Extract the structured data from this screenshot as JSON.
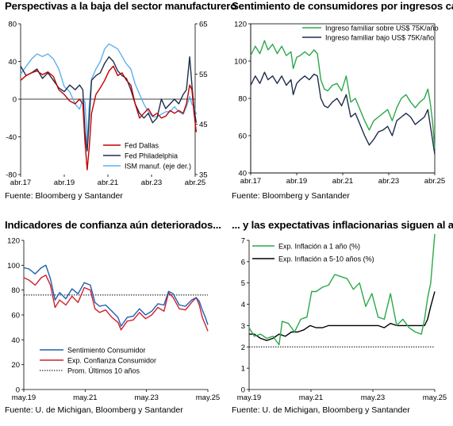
{
  "panels": {
    "p1": {
      "title": "Perspectivas a la baja del sector manufacturero",
      "source": "Fuente: Bloomberg y Santander"
    },
    "p2": {
      "title": "Sentimiento de consumidores por ingresos cae",
      "source": "Fuente: Bloomberg y Santander"
    },
    "p3": {
      "title": "Indicadores de confianza aún deteriorados...",
      "source": "Fuente: U. de Michigan, Bloomberg y Santander"
    },
    "p4": {
      "title": "... y las expectativas inflacionarias siguen al alza",
      "source": "Fuente: U. de Michigan, Bloomberg y Santander"
    }
  },
  "chart_data": [
    {
      "id": "p1",
      "type": "line",
      "title": "Perspectivas a la baja del sector manufacturero",
      "x_range": [
        2017.25,
        2025.25
      ],
      "x_ticks": [
        {
          "v": 2017.25,
          "label": "abr.17"
        },
        {
          "v": 2019.25,
          "label": "abr.19"
        },
        {
          "v": 2021.25,
          "label": "abr.21"
        },
        {
          "v": 2023.25,
          "label": "abr.23"
        },
        {
          "v": 2025.25,
          "label": "abr.25"
        }
      ],
      "ylim": [
        -80,
        80
      ],
      "y_ticks": [
        80,
        40,
        0,
        -40,
        -80
      ],
      "y2lim": [
        35,
        65
      ],
      "y2_ticks": [
        65,
        55,
        45,
        35
      ],
      "zero_line": true,
      "legend": "bottom-center",
      "series": [
        {
          "name": "Fed Dallas",
          "axis": "left",
          "color": "#c00000",
          "x": [
            2017.25,
            2017.5,
            2017.75,
            2018.0,
            2018.25,
            2018.5,
            2018.75,
            2019.0,
            2019.25,
            2019.5,
            2019.75,
            2019.95,
            2020.1,
            2020.2,
            2020.3,
            2020.4,
            2020.5,
            2020.7,
            2020.9,
            2021.1,
            2021.3,
            2021.5,
            2021.7,
            2021.9,
            2022.1,
            2022.3,
            2022.5,
            2022.7,
            2022.9,
            2023.1,
            2023.3,
            2023.5,
            2023.7,
            2023.9,
            2024.1,
            2024.3,
            2024.5,
            2024.7,
            2024.85,
            2025.0,
            2025.1,
            2025.2,
            2025.3
          ],
          "y": [
            20,
            25,
            28,
            30,
            26,
            29,
            24,
            10,
            5,
            -2,
            -5,
            0,
            -5,
            -45,
            -75,
            -50,
            -15,
            5,
            12,
            20,
            30,
            35,
            25,
            28,
            20,
            15,
            -5,
            -20,
            -15,
            -10,
            -18,
            -15,
            -20,
            -18,
            -12,
            -15,
            -12,
            -15,
            -5,
            15,
            10,
            -15,
            -35
          ]
        },
        {
          "name": "Fed Philadelphia",
          "axis": "left",
          "color": "#1f2d4d",
          "x": [
            2017.25,
            2017.5,
            2017.75,
            2018.0,
            2018.25,
            2018.5,
            2018.75,
            2019.0,
            2019.25,
            2019.5,
            2019.75,
            2019.95,
            2020.1,
            2020.2,
            2020.3,
            2020.4,
            2020.5,
            2020.7,
            2020.9,
            2021.1,
            2021.3,
            2021.5,
            2021.7,
            2021.9,
            2022.1,
            2022.3,
            2022.5,
            2022.7,
            2022.9,
            2023.1,
            2023.3,
            2023.5,
            2023.7,
            2023.9,
            2024.1,
            2024.3,
            2024.5,
            2024.7,
            2024.85,
            2025.0,
            2025.1,
            2025.2,
            2025.3
          ],
          "y": [
            35,
            25,
            28,
            32,
            22,
            28,
            20,
            12,
            8,
            15,
            10,
            15,
            10,
            -35,
            -55,
            -20,
            20,
            25,
            28,
            38,
            45,
            40,
            30,
            25,
            22,
            10,
            -5,
            -15,
            -20,
            -15,
            -25,
            -20,
            0,
            -10,
            -5,
            0,
            -5,
            5,
            10,
            45,
            15,
            -10,
            -25
          ]
        },
        {
          "name": "ISM manuf. (eje der.)",
          "axis": "right",
          "color": "#5eb0f0",
          "x": [
            2017.25,
            2017.5,
            2017.75,
            2018.0,
            2018.25,
            2018.5,
            2018.75,
            2019.0,
            2019.25,
            2019.5,
            2019.75,
            2019.95,
            2020.1,
            2020.2,
            2020.3,
            2020.4,
            2020.5,
            2020.7,
            2020.9,
            2021.1,
            2021.3,
            2021.5,
            2021.7,
            2021.9,
            2022.1,
            2022.3,
            2022.5,
            2022.7,
            2022.9,
            2023.1,
            2023.3,
            2023.5,
            2023.7,
            2023.9,
            2024.1,
            2024.3,
            2024.5,
            2024.7,
            2024.85,
            2025.0,
            2025.1,
            2025.2,
            2025.3
          ],
          "y": [
            55,
            56.5,
            58,
            59,
            58.5,
            59,
            58,
            56,
            52.5,
            51.5,
            49,
            48,
            50,
            49.5,
            41.5,
            49,
            54,
            56,
            57.5,
            60,
            61,
            60.5,
            60,
            58.5,
            57,
            56,
            53,
            51,
            49,
            47.5,
            46.5,
            46.5,
            47,
            47.5,
            47.5,
            48.5,
            47.5,
            47,
            48.5,
            50.5,
            49,
            48.5,
            47
          ]
        }
      ]
    },
    {
      "id": "p2",
      "type": "line",
      "title": "Sentimiento de consumidores por ingresos cae",
      "x_range": [
        2017.25,
        2025.25
      ],
      "x_ticks": [
        {
          "v": 2017.25,
          "label": "abr.17"
        },
        {
          "v": 2019.25,
          "label": "abr.19"
        },
        {
          "v": 2021.25,
          "label": "abr.21"
        },
        {
          "v": 2023.25,
          "label": "abr.23"
        },
        {
          "v": 2025.25,
          "label": "abr.25"
        }
      ],
      "ylim": [
        40,
        120
      ],
      "y_ticks": [
        120,
        100,
        80,
        60,
        40
      ],
      "legend": "top-right",
      "series": [
        {
          "name": "Ingreso familiar sobre US$ 75K/año",
          "color": "#2ba84a",
          "x": [
            2017.25,
            2017.45,
            2017.65,
            2017.85,
            2018.0,
            2018.2,
            2018.4,
            2018.6,
            2018.8,
            2019.0,
            2019.1,
            2019.25,
            2019.4,
            2019.6,
            2019.8,
            2020.0,
            2020.15,
            2020.3,
            2020.45,
            2020.6,
            2020.8,
            2021.0,
            2021.2,
            2021.4,
            2021.6,
            2021.8,
            2022.0,
            2022.2,
            2022.4,
            2022.6,
            2022.8,
            2023.0,
            2023.2,
            2023.4,
            2023.6,
            2023.8,
            2024.0,
            2024.2,
            2024.4,
            2024.6,
            2024.8,
            2024.95,
            2025.05,
            2025.15,
            2025.25
          ],
          "y": [
            103,
            108,
            104,
            111,
            106,
            109,
            104,
            108,
            103,
            105,
            96,
            102,
            103,
            105,
            103,
            106,
            104,
            90,
            85,
            84,
            87,
            88,
            84,
            92,
            78,
            80,
            74,
            68,
            63,
            68,
            70,
            72,
            74,
            68,
            75,
            80,
            82,
            78,
            75,
            78,
            80,
            85,
            78,
            68,
            53
          ]
        },
        {
          "name": "Ingreso familiar bajo US$ 75K/año",
          "color": "#1f2d4d",
          "x": [
            2017.25,
            2017.45,
            2017.65,
            2017.85,
            2018.0,
            2018.2,
            2018.4,
            2018.6,
            2018.8,
            2019.0,
            2019.1,
            2019.25,
            2019.4,
            2019.6,
            2019.8,
            2020.0,
            2020.15,
            2020.3,
            2020.45,
            2020.6,
            2020.8,
            2021.0,
            2021.2,
            2021.4,
            2021.6,
            2021.8,
            2022.0,
            2022.2,
            2022.4,
            2022.6,
            2022.8,
            2023.0,
            2023.2,
            2023.4,
            2023.6,
            2023.8,
            2024.0,
            2024.2,
            2024.4,
            2024.6,
            2024.8,
            2024.95,
            2025.05,
            2025.15,
            2025.25
          ],
          "y": [
            87,
            92,
            88,
            94,
            90,
            92,
            88,
            92,
            87,
            90,
            82,
            88,
            90,
            92,
            90,
            93,
            92,
            80,
            76,
            75,
            78,
            80,
            76,
            82,
            70,
            72,
            66,
            60,
            55,
            58,
            62,
            63,
            65,
            60,
            68,
            70,
            72,
            70,
            66,
            68,
            70,
            74,
            66,
            58,
            50
          ]
        }
      ]
    },
    {
      "id": "p3",
      "type": "line",
      "title": "Indicadores de confianza aún deteriorados...",
      "x_range": [
        2019.33,
        2025.33
      ],
      "x_ticks": [
        {
          "v": 2019.33,
          "label": "may.19"
        },
        {
          "v": 2021.33,
          "label": "may.21"
        },
        {
          "v": 2023.33,
          "label": "may.23"
        },
        {
          "v": 2025.33,
          "label": "may.25"
        }
      ],
      "ylim": [
        0,
        120
      ],
      "y_ticks": [
        120,
        100,
        80,
        60,
        40,
        20,
        0
      ],
      "legend": "bottom-left",
      "series": [
        {
          "name": "Sentimiento Consumidor",
          "color": "#1f5fb0",
          "x": [
            2019.33,
            2019.5,
            2019.7,
            2019.9,
            2020.05,
            2020.2,
            2020.35,
            2020.5,
            2020.7,
            2020.9,
            2021.1,
            2021.3,
            2021.5,
            2021.65,
            2021.8,
            2022.0,
            2022.2,
            2022.4,
            2022.5,
            2022.7,
            2022.9,
            2023.1,
            2023.3,
            2023.5,
            2023.7,
            2023.9,
            2024.05,
            2024.2,
            2024.4,
            2024.6,
            2024.8,
            2024.95,
            2025.05,
            2025.15,
            2025.25,
            2025.33
          ],
          "y": [
            98,
            97,
            93,
            98,
            100,
            89,
            72,
            78,
            73,
            81,
            77,
            86,
            84,
            70,
            67,
            68,
            63,
            58,
            51,
            58,
            59,
            65,
            60,
            63,
            69,
            68,
            79,
            77,
            68,
            67,
            72,
            74,
            71,
            64,
            58,
            52
          ]
        },
        {
          "name": "Exp. Confianza Consumidor",
          "color": "#d0202f",
          "x": [
            2019.33,
            2019.5,
            2019.7,
            2019.9,
            2020.05,
            2020.2,
            2020.35,
            2020.5,
            2020.7,
            2020.9,
            2021.1,
            2021.3,
            2021.5,
            2021.65,
            2021.8,
            2022.0,
            2022.2,
            2022.4,
            2022.5,
            2022.7,
            2022.9,
            2023.1,
            2023.3,
            2023.5,
            2023.7,
            2023.9,
            2024.05,
            2024.2,
            2024.4,
            2024.6,
            2024.8,
            2024.95,
            2025.05,
            2025.15,
            2025.25,
            2025.33
          ],
          "y": [
            90,
            88,
            84,
            90,
            92,
            84,
            66,
            72,
            68,
            75,
            70,
            82,
            80,
            65,
            62,
            64,
            58,
            54,
            48,
            55,
            56,
            62,
            57,
            60,
            66,
            63,
            78,
            74,
            65,
            64,
            70,
            74,
            68,
            58,
            52,
            47
          ]
        },
        {
          "name": "Prom. Últimos 10 años",
          "color": "#000000",
          "style": "dotted",
          "x": [
            2019.33,
            2025.33
          ],
          "y": [
            76,
            76
          ]
        }
      ]
    },
    {
      "id": "p4",
      "type": "line",
      "title": "... y las expectativas inflacionarias siguen al alza",
      "x_range": [
        2019.33,
        2025.33
      ],
      "x_ticks": [
        {
          "v": 2019.33,
          "label": "may.19"
        },
        {
          "v": 2021.33,
          "label": "may.21"
        },
        {
          "v": 2023.33,
          "label": "may.23"
        },
        {
          "v": 2025.33,
          "label": "may.25"
        }
      ],
      "ylim": [
        0,
        7
      ],
      "y_ticks": [
        7,
        6,
        5,
        4,
        3,
        2,
        1,
        0
      ],
      "legend": "top-left",
      "series": [
        {
          "name": "Exp. Inflación a 1 año (%)",
          "color": "#2ba84a",
          "x": [
            2019.33,
            2019.5,
            2019.7,
            2019.9,
            2020.1,
            2020.3,
            2020.4,
            2020.6,
            2020.8,
            2021.0,
            2021.2,
            2021.35,
            2021.5,
            2021.7,
            2021.9,
            2022.1,
            2022.3,
            2022.5,
            2022.7,
            2022.9,
            2023.1,
            2023.3,
            2023.5,
            2023.7,
            2023.9,
            2024.1,
            2024.3,
            2024.5,
            2024.7,
            2024.9,
            2025.0,
            2025.1,
            2025.2,
            2025.33
          ],
          "y": [
            2.9,
            2.5,
            2.6,
            2.4,
            2.5,
            2.1,
            3.2,
            3.1,
            2.7,
            3.3,
            3.4,
            4.6,
            4.6,
            4.8,
            4.9,
            5.4,
            5.3,
            5.2,
            4.7,
            5.0,
            3.9,
            4.5,
            3.4,
            3.3,
            4.5,
            3.0,
            3.3,
            2.9,
            2.7,
            2.6,
            3.3,
            4.3,
            5.0,
            7.3
          ]
        },
        {
          "name": "Exp. Inflación a 5-10 años (%)",
          "color": "#000000",
          "x": [
            2019.33,
            2019.5,
            2019.7,
            2019.9,
            2020.1,
            2020.3,
            2020.5,
            2020.7,
            2020.9,
            2021.1,
            2021.3,
            2021.5,
            2021.7,
            2021.9,
            2022.1,
            2022.3,
            2022.5,
            2022.7,
            2022.9,
            2023.1,
            2023.3,
            2023.5,
            2023.7,
            2023.9,
            2024.1,
            2024.3,
            2024.5,
            2024.7,
            2024.9,
            2025.0,
            2025.1,
            2025.2,
            2025.33
          ],
          "y": [
            2.6,
            2.6,
            2.4,
            2.3,
            2.4,
            2.6,
            2.5,
            2.7,
            2.7,
            2.8,
            3.0,
            2.9,
            2.9,
            3.0,
            3.0,
            3.0,
            3.0,
            3.0,
            3.0,
            3.0,
            3.0,
            3.0,
            2.9,
            3.1,
            3.0,
            3.0,
            3.0,
            3.0,
            3.0,
            3.0,
            3.3,
            3.9,
            4.6
          ]
        },
        {
          "name": "",
          "color": "#000000",
          "style": "dotted",
          "x": [
            2019.33,
            2025.33
          ],
          "y": [
            2,
            2
          ]
        }
      ]
    }
  ]
}
